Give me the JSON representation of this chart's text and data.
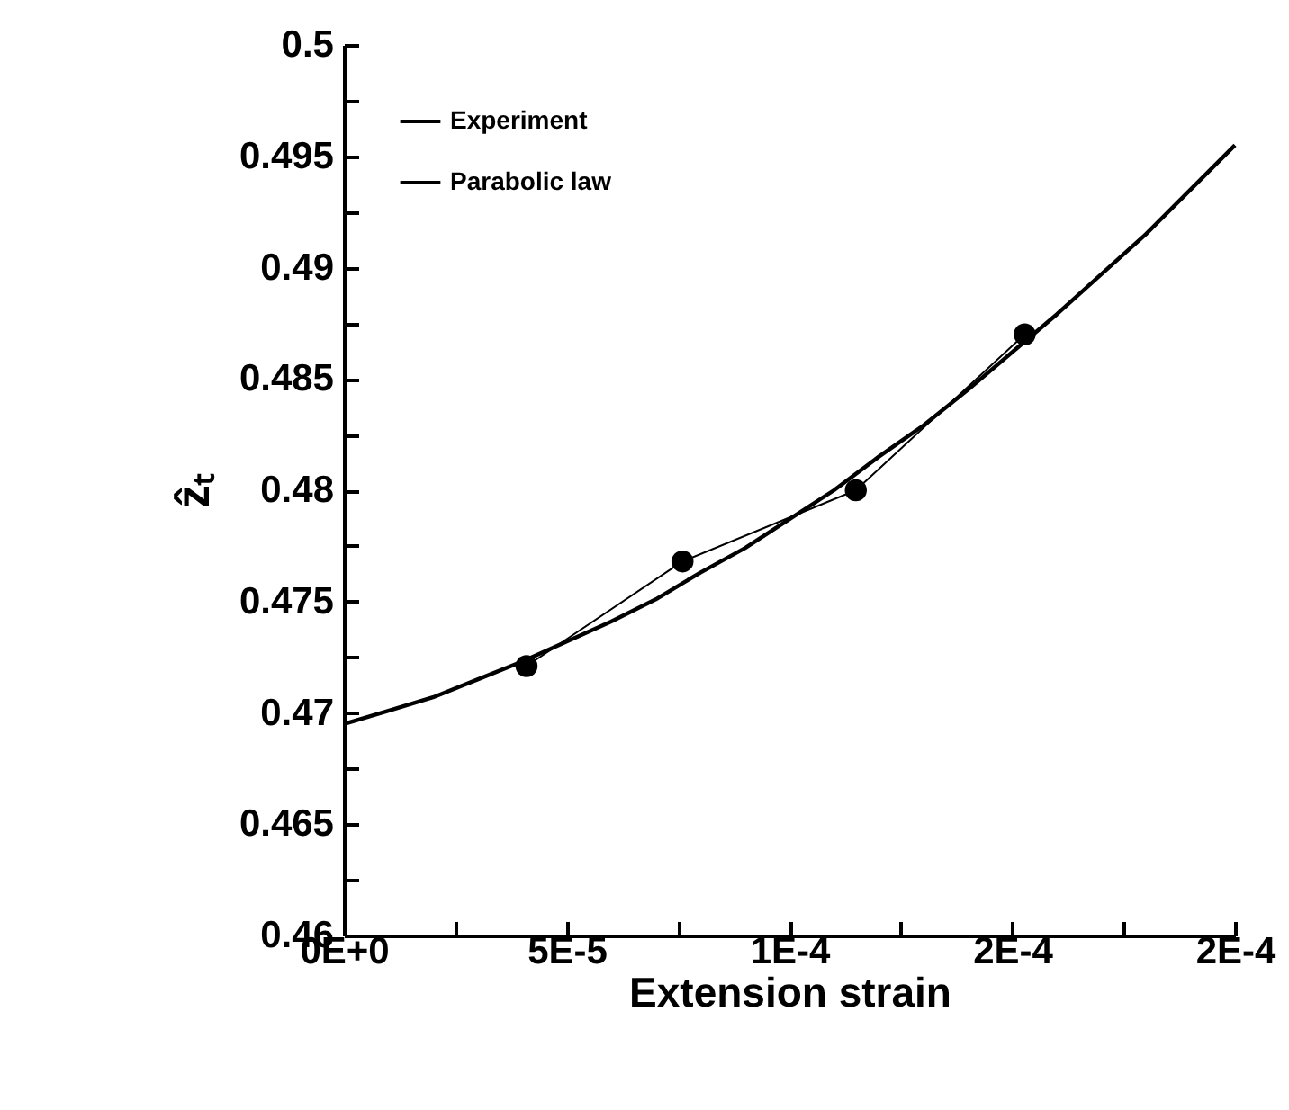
{
  "chart_data": {
    "type": "line",
    "xlabel": "Extension strain",
    "ylabel": "ẑₜ",
    "xlim": [
      0,
      0.0002
    ],
    "xticks": [
      {
        "value": 0,
        "label": "0E+0"
      },
      {
        "value": 2.5e-05,
        "label": null
      },
      {
        "value": 5e-05,
        "label": "5E-5"
      },
      {
        "value": 7.5e-05,
        "label": null
      },
      {
        "value": 0.0001,
        "label": "1E-4"
      },
      {
        "value": 0.000125,
        "label": null
      },
      {
        "value": 0.00015,
        "label": "2E-4"
      },
      {
        "value": 0.000175,
        "label": null
      },
      {
        "value": 0.0002,
        "label": "2E-4"
      }
    ],
    "ylim": [
      0.46,
      0.5
    ],
    "yticks": [
      {
        "value": 0.46,
        "label": "0.46"
      },
      {
        "value": 0.4625,
        "label": null
      },
      {
        "value": 0.465,
        "label": "0.465"
      },
      {
        "value": 0.4675,
        "label": null
      },
      {
        "value": 0.47,
        "label": "0.47"
      },
      {
        "value": 0.4725,
        "label": null
      },
      {
        "value": 0.475,
        "label": "0.475"
      },
      {
        "value": 0.4775,
        "label": null
      },
      {
        "value": 0.48,
        "label": "0.48"
      },
      {
        "value": 0.4825,
        "label": null
      },
      {
        "value": 0.485,
        "label": "0.485"
      },
      {
        "value": 0.4875,
        "label": null
      },
      {
        "value": 0.49,
        "label": "0.49"
      },
      {
        "value": 0.4925,
        "label": null
      },
      {
        "value": 0.495,
        "label": "0.495"
      },
      {
        "value": 0.4975,
        "label": null
      },
      {
        "value": 0.5,
        "label": "0.5"
      }
    ],
    "grid": false,
    "legend": "top left",
    "series": [
      {
        "name": "Experiment",
        "color": "#000000",
        "marker": "circle",
        "x": [
          4.1e-05,
          7.6e-05,
          0.0001149,
          0.0001528
        ],
        "values": [
          0.4721,
          0.4768,
          0.48,
          0.487
        ]
      },
      {
        "name": "Parabolic law",
        "color": "#000000",
        "marker": "none",
        "x": [
          0,
          1e-05,
          2e-05,
          3e-05,
          4e-05,
          5e-05,
          6e-05,
          7e-05,
          8e-05,
          9e-05,
          0.0001,
          0.00011,
          0.00012,
          0.00013,
          0.00014,
          0.00015,
          0.00016,
          0.00017,
          0.00018,
          0.00019,
          0.0002
        ],
        "values": [
          0.4695,
          0.4701,
          0.4707,
          0.4715,
          0.4723,
          0.4732,
          0.4741,
          0.4751,
          0.4763,
          0.4774,
          0.4787,
          0.48,
          0.4815,
          0.4829,
          0.4845,
          0.4862,
          0.4879,
          0.4897,
          0.4915,
          0.4935,
          0.4955
        ]
      }
    ]
  }
}
